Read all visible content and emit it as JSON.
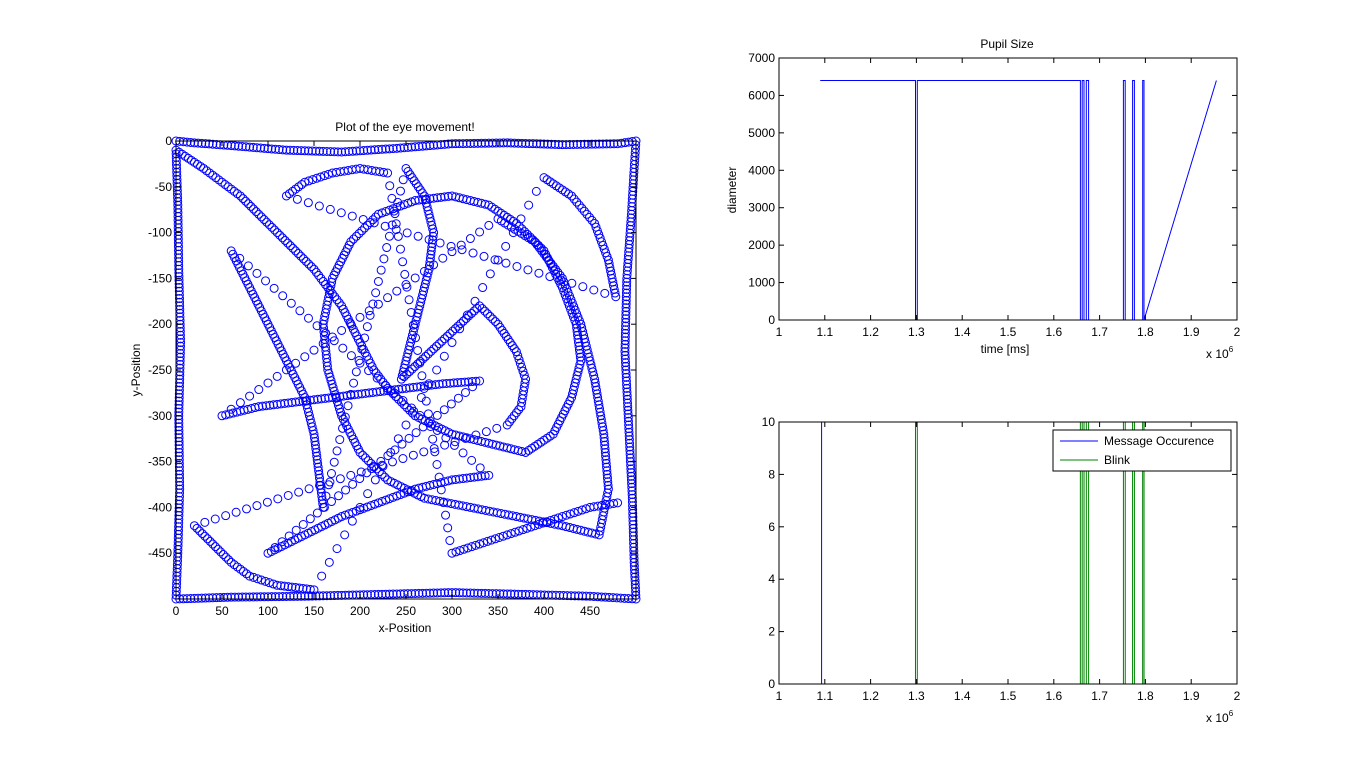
{
  "chart_data": [
    {
      "type": "scatter",
      "title": "Plot of the eye movement!",
      "xlabel": "x-Position",
      "ylabel": "y-Position",
      "xlim": [
        0,
        500
      ],
      "ylim": [
        -500,
        0
      ],
      "xticks": [
        0,
        50,
        100,
        150,
        200,
        250,
        300,
        350,
        400,
        450
      ],
      "yticks": [
        0,
        -50,
        -100,
        -150,
        -200,
        -250,
        -300,
        -350,
        -400,
        -450
      ],
      "xtick_labels": [
        "0",
        "50",
        "100",
        "150",
        "200",
        "250",
        "300",
        "350",
        "400",
        "450"
      ],
      "ytick_labels": [
        "0",
        "-50",
        "-100",
        "-150",
        "-200",
        "-250",
        "-300",
        "-350",
        "-400",
        "-450"
      ],
      "marker": "circle",
      "color": "#0000ff",
      "series": [
        {
          "points": [
            [
              0,
              0
            ],
            [
              20,
              -2
            ],
            [
              60,
              -5
            ],
            [
              120,
              -10
            ],
            [
              180,
              -12
            ],
            [
              240,
              -8
            ],
            [
              300,
              -3
            ],
            [
              360,
              -2
            ],
            [
              420,
              -4
            ],
            [
              480,
              -3
            ],
            [
              500,
              0
            ],
            [
              498,
              -30
            ],
            [
              495,
              -80
            ],
            [
              490,
              -150
            ],
            [
              488,
              -230
            ],
            [
              492,
              -310
            ],
            [
              496,
              -390
            ],
            [
              498,
              -460
            ],
            [
              500,
              -500
            ],
            [
              450,
              -497
            ],
            [
              380,
              -495
            ],
            [
              300,
              -493
            ],
            [
              220,
              -495
            ],
            [
              140,
              -497
            ],
            [
              60,
              -498
            ],
            [
              0,
              -500
            ],
            [
              2,
              -450
            ],
            [
              4,
              -380
            ],
            [
              3,
              -300
            ],
            [
              5,
              -220
            ],
            [
              3,
              -140
            ],
            [
              2,
              -70
            ],
            [
              0,
              -10
            ],
            [
              30,
              -30
            ],
            [
              70,
              -60
            ],
            [
              110,
              -100
            ],
            [
              150,
              -140
            ],
            [
              180,
              -180
            ],
            [
              200,
              -220
            ],
            [
              215,
              -250
            ],
            [
              230,
              -270
            ],
            [
              260,
              -300
            ],
            [
              300,
              -320
            ],
            [
              340,
              -330
            ],
            [
              380,
              -340
            ],
            [
              410,
              -320
            ],
            [
              430,
              -280
            ],
            [
              440,
              -240
            ],
            [
              435,
              -200
            ],
            [
              420,
              -160
            ],
            [
              400,
              -120
            ],
            [
              370,
              -90
            ],
            [
              340,
              -70
            ],
            [
              300,
              -60
            ],
            [
              260,
              -65
            ],
            [
              220,
              -80
            ],
            [
              190,
              -110
            ],
            [
              170,
              -150
            ],
            [
              160,
              -200
            ],
            [
              165,
              -250
            ],
            [
              180,
              -300
            ],
            [
              200,
              -340
            ],
            [
              230,
              -370
            ],
            [
              270,
              -390
            ],
            [
              320,
              -400
            ],
            [
              370,
              -410
            ],
            [
              420,
              -420
            ],
            [
              460,
              -430
            ],
            [
              470,
              -380
            ],
            [
              465,
              -320
            ],
            [
              455,
              -260
            ],
            [
              440,
              -200
            ],
            [
              420,
              -150
            ],
            [
              390,
              -110
            ],
            [
              350,
              -85
            ],
            [
              50,
              -300
            ],
            [
              90,
              -290
            ],
            [
              130,
              -285
            ],
            [
              170,
              -280
            ],
            [
              210,
              -275
            ],
            [
              250,
              -270
            ],
            [
              290,
              -265
            ],
            [
              330,
              -262
            ],
            [
              100,
              -450
            ],
            [
              140,
              -430
            ],
            [
              180,
              -410
            ],
            [
              220,
              -395
            ],
            [
              260,
              -380
            ],
            [
              300,
              -370
            ],
            [
              340,
              -365
            ],
            [
              60,
              -120
            ],
            [
              80,
              -160
            ],
            [
              100,
              -200
            ],
            [
              120,
              -240
            ],
            [
              140,
              -280
            ],
            [
              150,
              -320
            ],
            [
              155,
              -360
            ],
            [
              160,
              -400
            ],
            [
              250,
              -30
            ],
            [
              270,
              -60
            ],
            [
              280,
              -100
            ],
            [
              275,
              -140
            ],
            [
              265,
              -180
            ],
            [
              255,
              -220
            ],
            [
              245,
              -260
            ],
            [
              330,
              -180
            ],
            [
              350,
              -200
            ],
            [
              370,
              -230
            ],
            [
              380,
              -260
            ],
            [
              375,
              -290
            ],
            [
              360,
              -310
            ],
            [
              20,
              -420
            ],
            [
              40,
              -440
            ],
            [
              60,
              -460
            ],
            [
              80,
              -475
            ],
            [
              110,
              -485
            ],
            [
              150,
              -490
            ],
            [
              400,
              -40
            ],
            [
              430,
              -60
            ],
            [
              455,
              -90
            ],
            [
              470,
              -130
            ],
            [
              478,
              -170
            ],
            [
              120,
              -60
            ],
            [
              140,
              -45
            ],
            [
              170,
              -35
            ],
            [
              200,
              -30
            ],
            [
              230,
              -35
            ],
            [
              300,
              -450
            ],
            [
              330,
              -440
            ],
            [
              360,
              -430
            ],
            [
              390,
              -420
            ],
            [
              420,
              -410
            ],
            [
              450,
              -400
            ],
            [
              480,
              -395
            ]
          ]
        }
      ]
    },
    {
      "type": "line",
      "title": "Pupil Size",
      "xlabel": "time [ms]",
      "ylabel": "diameter",
      "x_multiplier_label": "x 10",
      "x_multiplier_exp": "6",
      "xlim": [
        1,
        2
      ],
      "ylim": [
        0,
        7000
      ],
      "xticks": [
        1,
        1.1,
        1.2,
        1.3,
        1.4,
        1.5,
        1.6,
        1.7,
        1.8,
        1.9,
        2
      ],
      "xtick_labels": [
        "1",
        "1.1",
        "1.2",
        "1.3",
        "1.4",
        "1.5",
        "1.6",
        "1.7",
        "1.8",
        "1.9",
        "2"
      ],
      "yticks": [
        0,
        1000,
        2000,
        3000,
        4000,
        5000,
        6000,
        7000
      ],
      "ytick_labels": [
        "0",
        "1000",
        "2000",
        "3000",
        "4000",
        "5000",
        "6000",
        "7000"
      ],
      "color": "#0000ff",
      "series": [
        {
          "x": [
            1.09,
            1.298,
            1.298,
            1.302,
            1.302,
            1.658,
            1.658,
            1.662,
            1.662,
            1.666,
            1.666,
            1.671,
            1.671,
            1.676,
            1.676,
            1.752,
            1.752,
            1.756,
            1.756,
            1.772,
            1.772,
            1.776,
            1.776,
            1.794,
            1.794,
            1.797,
            1.797,
            1.955
          ],
          "y": [
            6400,
            6400,
            0,
            0,
            6400,
            6400,
            0,
            0,
            6400,
            6400,
            0,
            0,
            6400,
            6400,
            0,
            0,
            6400,
            6400,
            0,
            0,
            6400,
            6400,
            0,
            0,
            6400,
            6400,
            0,
            6400
          ]
        }
      ]
    },
    {
      "type": "line",
      "title": "",
      "xlabel": "",
      "ylabel": "",
      "x_multiplier_label": "x 10",
      "x_multiplier_exp": "6",
      "xlim": [
        1,
        2
      ],
      "ylim": [
        0,
        10
      ],
      "xticks": [
        1,
        1.1,
        1.2,
        1.3,
        1.4,
        1.5,
        1.6,
        1.7,
        1.8,
        1.9,
        2
      ],
      "xtick_labels": [
        "1",
        "1.1",
        "1.2",
        "1.3",
        "1.4",
        "1.5",
        "1.6",
        "1.7",
        "1.8",
        "1.9",
        "2"
      ],
      "yticks": [
        0,
        2,
        4,
        6,
        8,
        10
      ],
      "ytick_labels": [
        "0",
        "2",
        "4",
        "6",
        "8",
        "10"
      ],
      "legend_placement": "top-right",
      "series": [
        {
          "name": "Message Occurence",
          "color": "#0000ff",
          "x": [
            1.093
          ],
          "y": [
            10
          ]
        },
        {
          "name": "Blink",
          "color": "#008000",
          "x": [
            1.298,
            1.302,
            1.658,
            1.662,
            1.666,
            1.671,
            1.676,
            1.752,
            1.756,
            1.772,
            1.776,
            1.794,
            1.797
          ],
          "y": [
            10,
            10,
            10,
            10,
            10,
            10,
            10,
            10,
            10,
            10,
            10,
            10,
            10
          ]
        }
      ]
    }
  ]
}
